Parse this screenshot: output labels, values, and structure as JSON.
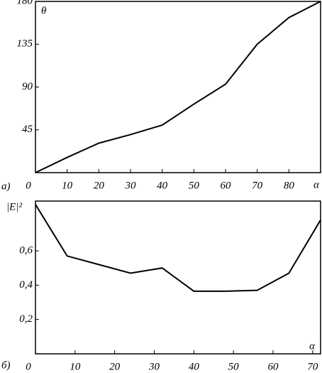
{
  "chart_data": [
    {
      "type": "line",
      "panel_label": "а)",
      "x_label": "α",
      "y_label": "θ",
      "color": "#000000",
      "x": [
        0,
        10,
        20,
        30,
        40,
        50,
        60,
        70,
        80,
        90
      ],
      "values": [
        0,
        16,
        31,
        40,
        50,
        72,
        93,
        135,
        163,
        180
      ],
      "xlim": [
        0,
        90
      ],
      "xticks": [
        0,
        10,
        20,
        30,
        40,
        50,
        60,
        70,
        80
      ],
      "ylim": [
        0,
        180
      ],
      "yticks": [
        45,
        90,
        135,
        180
      ]
    },
    {
      "type": "line",
      "panel_label": "б)",
      "x_label": "α",
      "y_label": "|E|²",
      "color": "#000000",
      "x": [
        0,
        8,
        16,
        24,
        32,
        40,
        48,
        56,
        64,
        72
      ],
      "values": [
        0.87,
        0.57,
        0.52,
        0.47,
        0.5,
        0.365,
        0.365,
        0.37,
        0.47,
        0.78
      ],
      "xlim": [
        0,
        72
      ],
      "xticks": [
        0,
        10,
        20,
        30,
        40,
        50,
        60,
        70
      ],
      "ylim": [
        0,
        0.89
      ],
      "yticks": [
        {
          "value": 0.2,
          "label": "0,2"
        },
        {
          "value": 0.4,
          "label": "0,4"
        },
        {
          "value": 0.6,
          "label": "0,6"
        }
      ]
    }
  ]
}
